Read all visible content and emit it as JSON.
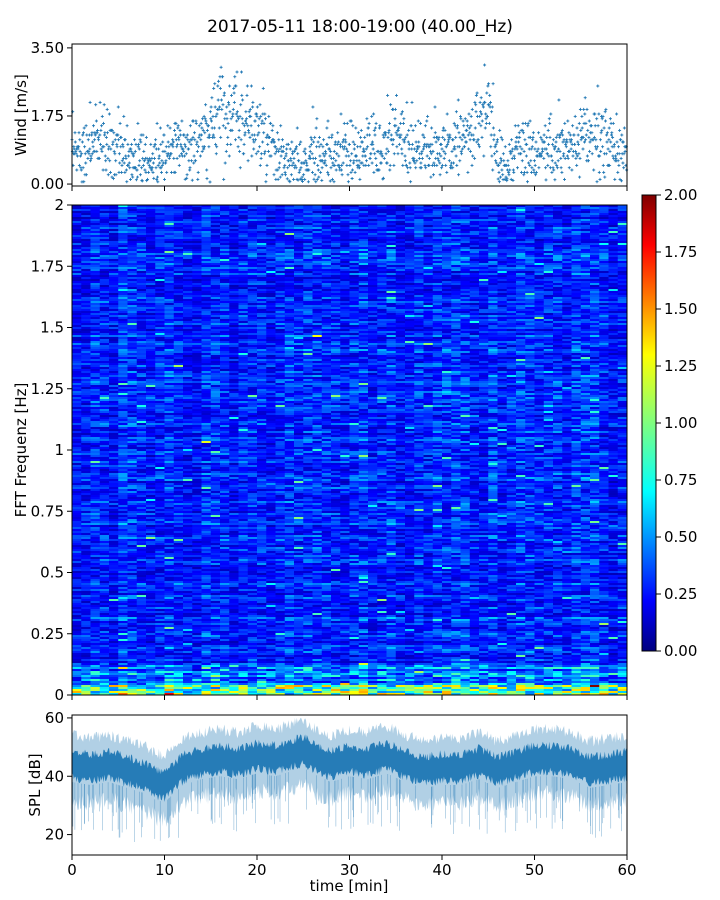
{
  "chart_data": [
    {
      "type": "scatter",
      "title": "2017-05-11 18:00-19:00 (40.00_Hz)",
      "xlabel": "",
      "ylabel": "Wind [m/s]",
      "xlim": [
        0,
        60
      ],
      "ylim": [
        -0.05,
        3.6
      ],
      "yticks": [
        "0.00",
        "1.75",
        "3.50"
      ],
      "y_tick_values": [
        0,
        1.75,
        3.5
      ],
      "color": "#1f77b4",
      "marker": "+",
      "envelope": {
        "x": [
          0,
          2,
          4,
          6,
          8,
          10,
          12,
          14,
          15,
          16,
          17,
          18,
          20,
          22,
          24,
          26,
          28,
          30,
          32,
          34,
          35,
          36,
          38,
          40,
          42,
          43,
          44,
          45,
          46,
          47,
          48,
          50,
          52,
          54,
          56,
          58,
          60
        ],
        "y_center": [
          0.7,
          1.0,
          1.1,
          0.7,
          0.6,
          0.7,
          1.1,
          1.0,
          1.5,
          2.2,
          1.6,
          1.8,
          1.4,
          0.7,
          0.5,
          0.7,
          0.8,
          0.7,
          0.8,
          1.1,
          1.5,
          1.0,
          0.9,
          0.8,
          1.3,
          1.4,
          1.3,
          1.9,
          0.6,
          0.5,
          1.0,
          0.9,
          0.9,
          0.9,
          1.2,
          1.0,
          0.8
        ]
      }
    },
    {
      "type": "heatmap",
      "xlabel": "",
      "ylabel": "FFT Frequenz [Hz]",
      "xlim": [
        0,
        60
      ],
      "ylim": [
        0,
        2
      ],
      "yticks": [
        "0",
        "0.25",
        "0.5",
        "0.75",
        "1",
        "1.25",
        "1.5",
        "1.75",
        "2"
      ],
      "y_tick_values": [
        0,
        0.25,
        0.5,
        0.75,
        1,
        1.25,
        1.5,
        1.75,
        2
      ],
      "colormap": "jet",
      "color_range": [
        0,
        2
      ],
      "colorbar_ticks": [
        "0.00",
        "0.25",
        "0.50",
        "0.75",
        "1.00",
        "1.25",
        "1.50",
        "1.75",
        "2.00"
      ],
      "colorbar_tick_values": [
        0,
        0.25,
        0.5,
        0.75,
        1,
        1.25,
        1.5,
        1.75,
        2
      ],
      "typical_value": 0.3,
      "low_frequency_band_value": 0.9
    },
    {
      "type": "area",
      "xlabel": "time [min]",
      "ylabel": "SPL [dB]",
      "xlim": [
        0,
        60
      ],
      "ylim": [
        13,
        61
      ],
      "yticks": [
        "20",
        "40",
        "60"
      ],
      "y_tick_values": [
        20,
        40,
        60
      ],
      "xticks": [
        "0",
        "10",
        "20",
        "30",
        "40",
        "50",
        "60"
      ],
      "x_tick_values": [
        0,
        10,
        20,
        30,
        40,
        50,
        60
      ],
      "color": "#1f77b4",
      "envelope": {
        "x": [
          0,
          2,
          4,
          6,
          8,
          9,
          10,
          12,
          14,
          16,
          18,
          20,
          22,
          24,
          25,
          26,
          28,
          30,
          32,
          34,
          36,
          38,
          40,
          42,
          44,
          46,
          48,
          50,
          52,
          54,
          56,
          58,
          60
        ],
        "center": [
          44,
          43,
          44,
          42,
          40,
          38,
          37,
          43,
          45,
          46,
          45,
          47,
          46,
          48,
          49,
          47,
          44,
          46,
          45,
          47,
          44,
          42,
          43,
          43,
          45,
          42,
          44,
          46,
          46,
          45,
          42,
          43,
          44
        ]
      }
    }
  ]
}
